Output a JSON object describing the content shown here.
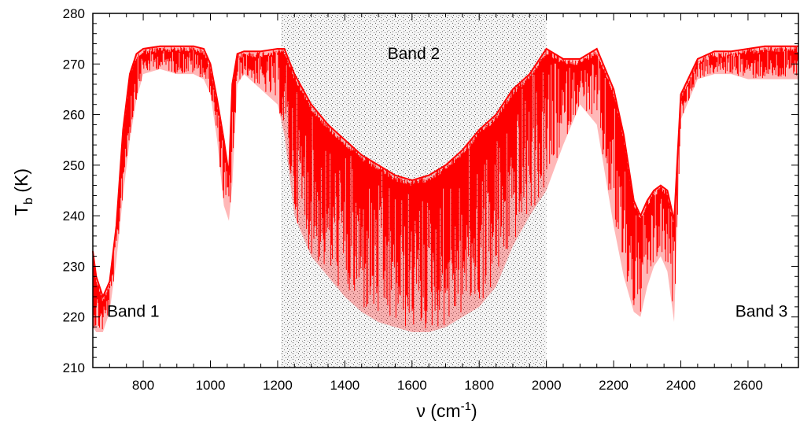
{
  "chart_data": {
    "type": "line",
    "title": "",
    "xlabel": {
      "base": "ν  (cm",
      "sup": "-1",
      "close": ")"
    },
    "ylabel": {
      "base": "T",
      "sub": "b",
      "rest": "  (K)"
    },
    "xlim": [
      650,
      2750
    ],
    "ylim": [
      210,
      280
    ],
    "x_ticks": [
      800,
      1000,
      1200,
      1400,
      1600,
      1800,
      2000,
      2200,
      2400,
      2600
    ],
    "y_ticks": [
      210,
      220,
      230,
      240,
      250,
      260,
      270,
      280
    ],
    "grid": false,
    "shaded_region": {
      "x_range": [
        1210,
        2000
      ],
      "label": "Band 2",
      "fill": "stippled-gray"
    },
    "annotations": [
      {
        "text": "Band 1",
        "x": 770,
        "y": 220
      },
      {
        "text": "Band 2",
        "x": 1605,
        "y": 271
      },
      {
        "text": "Band 3",
        "x": 2640,
        "y": 220
      }
    ],
    "series": [
      {
        "color": "#ff0000",
        "envelope_note": "dense spectrum drawn as upper/lower envelope",
        "x": [
          650,
          660,
          680,
          700,
          720,
          740,
          760,
          780,
          800,
          850,
          900,
          950,
          980,
          1000,
          1020,
          1040,
          1055,
          1065,
          1080,
          1100,
          1150,
          1200,
          1220,
          1250,
          1300,
          1350,
          1400,
          1450,
          1500,
          1550,
          1600,
          1650,
          1700,
          1750,
          1800,
          1850,
          1900,
          1950,
          2000,
          2050,
          2100,
          2150,
          2200,
          2230,
          2260,
          2280,
          2300,
          2320,
          2340,
          2360,
          2380,
          2400,
          2450,
          2500,
          2550,
          2600,
          2650,
          2700,
          2750
        ],
        "upper": [
          233,
          228,
          224,
          227,
          238,
          257,
          268,
          272,
          273,
          273.5,
          273.5,
          273.5,
          273,
          270,
          263,
          255,
          248,
          266,
          272,
          272.5,
          272.5,
          273,
          273,
          268,
          262,
          258,
          255,
          252,
          250,
          248,
          247,
          248,
          250,
          253,
          257,
          260,
          265,
          268,
          273,
          271,
          271,
          273,
          265,
          256,
          243,
          240,
          243,
          245,
          246,
          245,
          239,
          264,
          271,
          272.5,
          272.5,
          273,
          273.5,
          273.5,
          273.5
        ],
        "lower": [
          218,
          217,
          217,
          221,
          231,
          244,
          255,
          263,
          268,
          269,
          268,
          268,
          267,
          264,
          255,
          242,
          239,
          246,
          266,
          268,
          265,
          262,
          256,
          240,
          232,
          228,
          224,
          221,
          219,
          218,
          217,
          217,
          218,
          220,
          222,
          226,
          234,
          240,
          245,
          254,
          262,
          258,
          238,
          228,
          221,
          220,
          226,
          230,
          232,
          229,
          219,
          259,
          267,
          268,
          268,
          267,
          267,
          267,
          267
        ]
      }
    ]
  }
}
